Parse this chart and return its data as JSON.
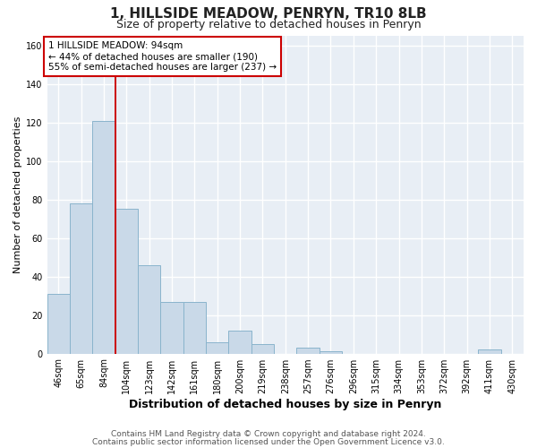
{
  "title": "1, HILLSIDE MEADOW, PENRYN, TR10 8LB",
  "subtitle": "Size of property relative to detached houses in Penryn",
  "xlabel": "Distribution of detached houses by size in Penryn",
  "ylabel": "Number of detached properties",
  "bar_labels": [
    "46sqm",
    "65sqm",
    "84sqm",
    "104sqm",
    "123sqm",
    "142sqm",
    "161sqm",
    "180sqm",
    "200sqm",
    "219sqm",
    "238sqm",
    "257sqm",
    "276sqm",
    "296sqm",
    "315sqm",
    "334sqm",
    "353sqm",
    "372sqm",
    "392sqm",
    "411sqm",
    "430sqm"
  ],
  "bar_values": [
    31,
    78,
    121,
    75,
    46,
    27,
    27,
    6,
    12,
    5,
    0,
    3,
    1,
    0,
    0,
    0,
    0,
    0,
    0,
    2,
    0
  ],
  "bar_color": "#c9d9e8",
  "bar_edgecolor": "#8ab4cc",
  "bar_linewidth": 0.7,
  "vline_x_idx": 2.5,
  "vline_color": "#cc0000",
  "vline_linewidth": 1.4,
  "annotation_text": "1 HILLSIDE MEADOW: 94sqm\n← 44% of detached houses are smaller (190)\n55% of semi-detached houses are larger (237) →",
  "annotation_box_edgecolor": "#cc0000",
  "annotation_box_facecolor": "#ffffff",
  "ylim": [
    0,
    165
  ],
  "yticks": [
    0,
    20,
    40,
    60,
    80,
    100,
    120,
    140,
    160
  ],
  "background_color": "#e8eef5",
  "plot_background": "#e8eef5",
  "grid_color": "#ffffff",
  "footer_line1": "Contains HM Land Registry data © Crown copyright and database right 2024.",
  "footer_line2": "Contains public sector information licensed under the Open Government Licence v3.0.",
  "title_fontsize": 11,
  "subtitle_fontsize": 9,
  "axis_label_fontsize": 9,
  "tick_fontsize": 7,
  "annotation_fontsize": 7.5,
  "footer_fontsize": 6.5,
  "ylabel_fontsize": 8
}
